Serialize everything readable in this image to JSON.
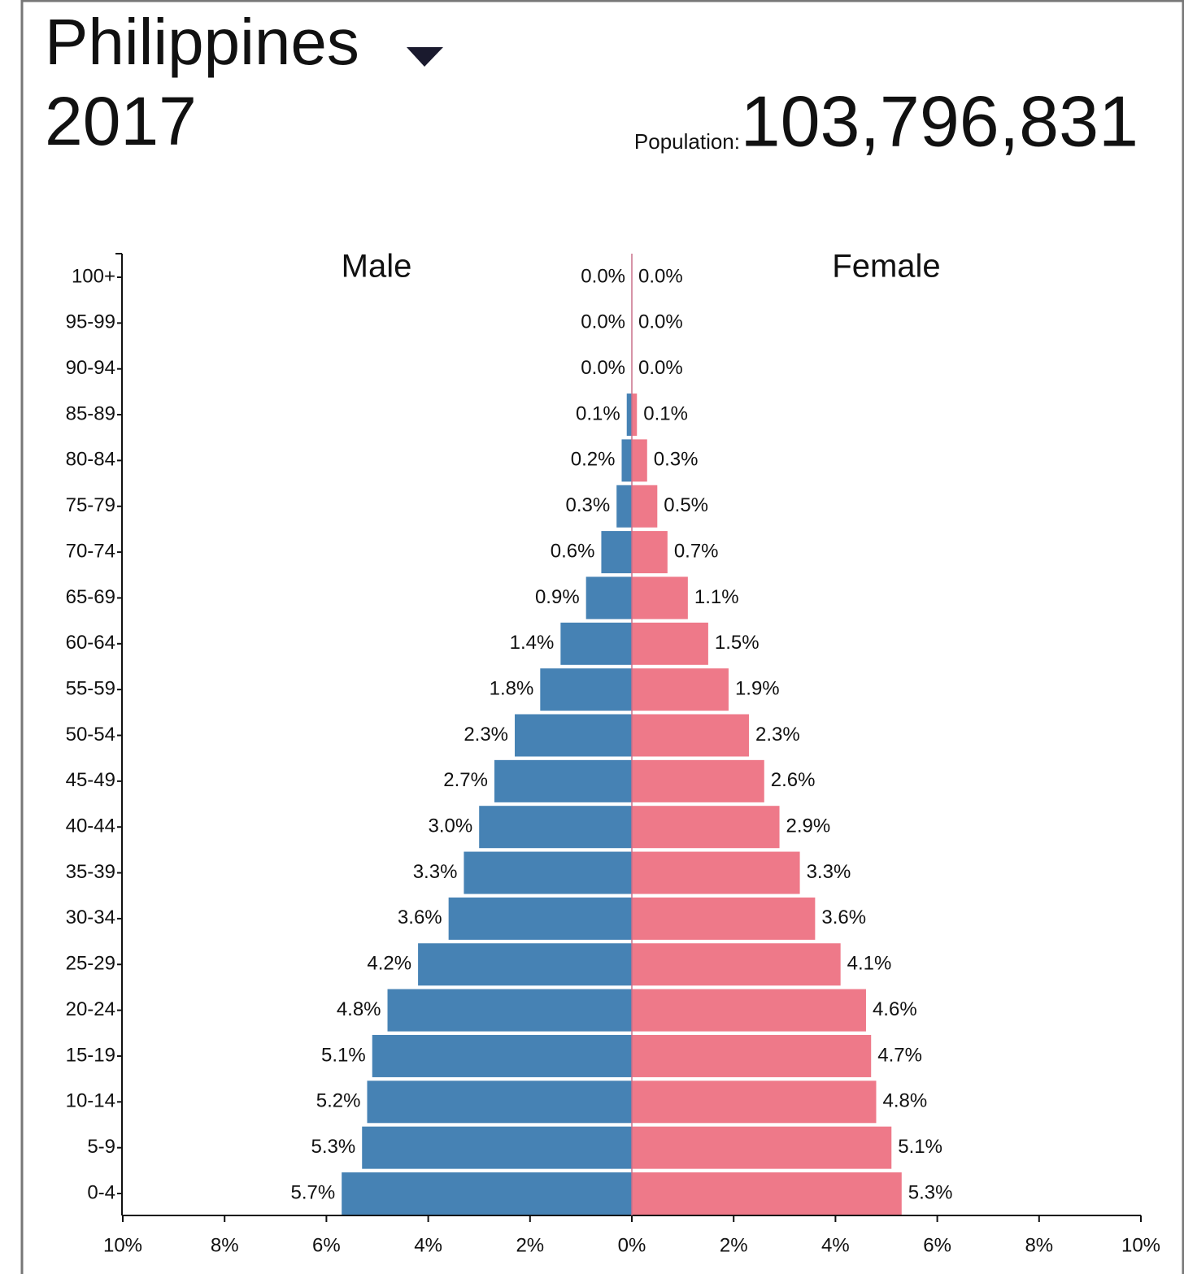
{
  "title": "Philippines",
  "year": "2017",
  "population_label": "Population:",
  "population": "103,796,831",
  "chart_data": {
    "type": "pyramid",
    "categories": [
      "100+",
      "95-99",
      "90-94",
      "85-89",
      "80-84",
      "75-79",
      "70-74",
      "65-69",
      "60-64",
      "55-59",
      "50-54",
      "45-49",
      "40-44",
      "35-39",
      "30-34",
      "25-29",
      "20-24",
      "15-19",
      "10-14",
      "5-9",
      "0-4"
    ],
    "series": [
      {
        "name": "Male",
        "color": "#4682b4",
        "values": [
          0.0,
          0.0,
          0.0,
          0.1,
          0.2,
          0.3,
          0.6,
          0.9,
          1.4,
          1.8,
          2.3,
          2.7,
          3.0,
          3.3,
          3.6,
          4.2,
          4.8,
          5.1,
          5.2,
          5.3,
          5.7
        ],
        "value_labels": [
          "0.0%",
          "0.0%",
          "0.0%",
          "0.1%",
          "0.2%",
          "0.3%",
          "0.6%",
          "0.9%",
          "1.4%",
          "1.8%",
          "2.3%",
          "2.7%",
          "3.0%",
          "3.3%",
          "3.6%",
          "4.2%",
          "4.8%",
          "5.1%",
          "5.2%",
          "5.3%",
          "5.7%"
        ]
      },
      {
        "name": "Female",
        "color": "#ee7989",
        "values": [
          0.0,
          0.0,
          0.0,
          0.1,
          0.3,
          0.5,
          0.7,
          1.1,
          1.5,
          1.9,
          2.3,
          2.6,
          2.9,
          3.3,
          3.6,
          4.1,
          4.6,
          4.7,
          4.8,
          5.1,
          5.3
        ],
        "value_labels": [
          "0.0%",
          "0.0%",
          "0.0%",
          "0.1%",
          "0.3%",
          "0.5%",
          "0.7%",
          "1.1%",
          "1.5%",
          "1.9%",
          "2.3%",
          "2.6%",
          "2.9%",
          "3.3%",
          "3.6%",
          "4.1%",
          "4.6%",
          "4.7%",
          "4.8%",
          "5.1%",
          "5.3%"
        ]
      }
    ],
    "xlim": [
      0,
      10
    ],
    "xticks": [
      {
        "value": 0,
        "label": "0%"
      },
      {
        "value": 2,
        "label": "2%"
      },
      {
        "value": 4,
        "label": "4%"
      },
      {
        "value": 6,
        "label": "6%"
      },
      {
        "value": 8,
        "label": "8%"
      },
      {
        "value": 10,
        "label": "10%"
      }
    ]
  }
}
